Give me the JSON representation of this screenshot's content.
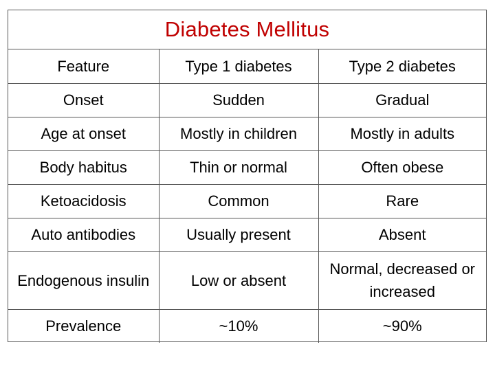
{
  "title": "Diabetes Mellitus",
  "colors": {
    "title": "#c00000",
    "border": "#555555",
    "text": "#000000"
  },
  "header": [
    "Feature",
    "Type 1 diabetes",
    "Type 2 diabetes"
  ],
  "rows": [
    [
      "Onset",
      "Sudden",
      "Gradual"
    ],
    [
      "Age at onset",
      "Mostly in children",
      "Mostly in adults"
    ],
    [
      "Body habitus",
      "Thin or normal",
      "Often obese"
    ],
    [
      "Ketoacidosis",
      "Common",
      "Rare"
    ],
    [
      "Auto antibodies",
      "Usually present",
      "Absent"
    ],
    [
      "Endogenous insulin",
      "Low or absent",
      "Normal, decreased or increased"
    ],
    [
      "Prevalence",
      "~10%",
      "~90%"
    ]
  ]
}
